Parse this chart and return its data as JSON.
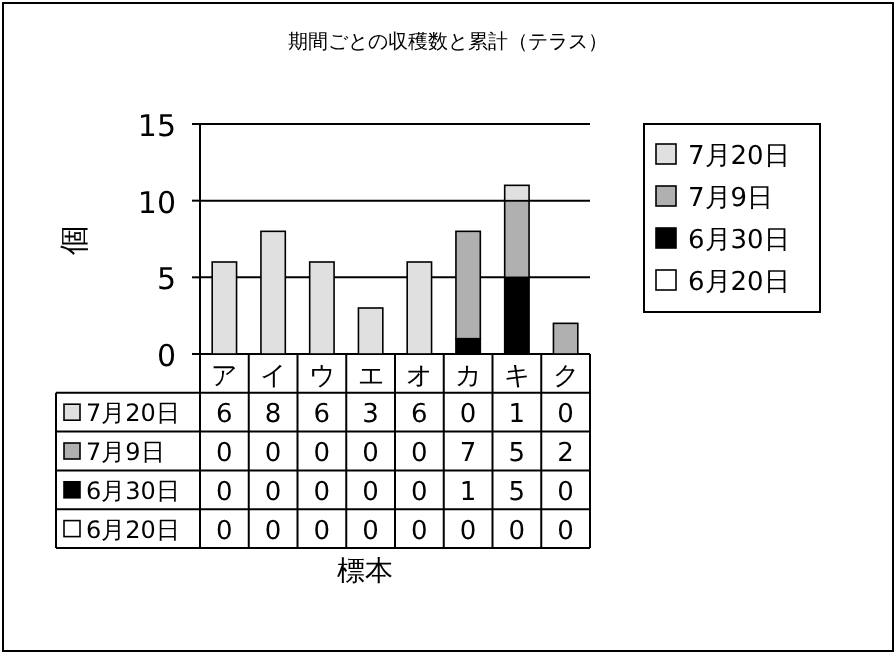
{
  "chart_data": {
    "type": "bar",
    "title": "期間ごとの収穫数と累計（テラス）",
    "annotations": [
      "標本"
    ],
    "ylabel": "個",
    "categories": [
      "ア",
      "イ",
      "ウ",
      "エ",
      "オ",
      "カ",
      "キ",
      "ク"
    ],
    "stacked": true,
    "ylim": [
      0,
      15
    ],
    "yticks": [
      0,
      5,
      10,
      15
    ],
    "grid": "y",
    "legend": "right",
    "data_labels": true,
    "series": [
      {
        "name": "6月20日",
        "color": "#ffffff",
        "values": [
          0,
          0,
          0,
          0,
          0,
          0,
          0,
          0
        ]
      },
      {
        "name": "6月30日",
        "color": "#000000",
        "values": [
          0,
          0,
          0,
          0,
          0,
          1,
          5,
          0
        ]
      },
      {
        "name": "7月9日",
        "color": "#b0b0b0",
        "values": [
          0,
          0,
          0,
          0,
          0,
          7,
          5,
          2
        ]
      },
      {
        "name": "7月20日",
        "color": "#e0e0e0",
        "values": [
          6,
          8,
          6,
          3,
          6,
          0,
          1,
          0
        ]
      }
    ]
  }
}
